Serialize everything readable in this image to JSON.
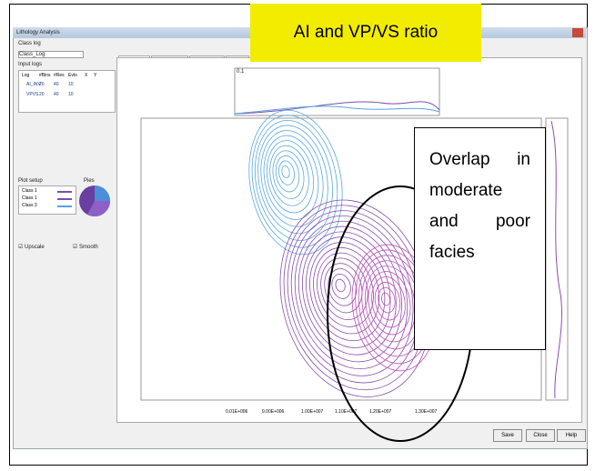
{
  "window": {
    "title": "Lithology Analysis"
  },
  "left_panel": {
    "class_log_label": "Class log",
    "class_log_value": "Class_Log",
    "input_logs_label": "Input logs",
    "columns": [
      "Log",
      "#Bins",
      "#Res",
      "Evts",
      "X",
      "Y"
    ],
    "rows": [
      [
        "AI_INV",
        "20",
        "40",
        "10"
      ],
      [
        "VPVS",
        "20",
        "40",
        "10"
      ]
    ],
    "plot_setup_label": "Plot setup",
    "classes": [
      "Class 1",
      "Class 1",
      "Class 3"
    ],
    "pies_label": "Pies",
    "upscale": "Upscale",
    "smooth": "Smooth"
  },
  "tabs": [
    "Contour plot",
    "Statistics (plot)",
    "Statistics (full)",
    "Log plot"
  ],
  "plot": {
    "top_hist_label": "0.1",
    "x_tick_labels": [
      "0.01E+006",
      "9.00E+006",
      "1.00E+007",
      "1.10E+007",
      "1.20E+007",
      "1.30E+007"
    ]
  },
  "buttons": [
    "Save",
    "Close",
    "Help"
  ],
  "annotations": {
    "title": "AI and VP/VS ratio",
    "note": "Overlap in moderate and poor facies"
  }
}
